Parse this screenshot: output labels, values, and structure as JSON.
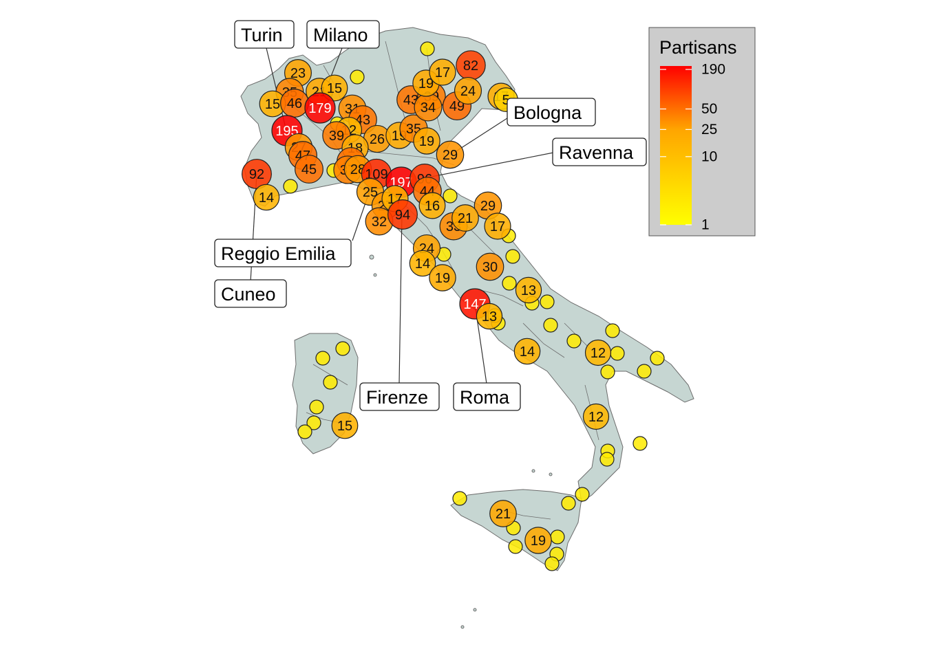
{
  "legend": {
    "title": "Partisans",
    "ticks": [
      190,
      50,
      25,
      10,
      1
    ],
    "colors": {
      "low": "#ffff00",
      "mid": "#ffa500",
      "high": "#ff0000"
    },
    "panel_color": "#cccccc"
  },
  "map_colors": {
    "land": "#c6d6d2",
    "border": "#6b6b6b",
    "bubble_stroke": "#222222"
  },
  "callouts": [
    {
      "name": "Turin",
      "label": "Turin"
    },
    {
      "name": "Milano",
      "label": "Milano"
    },
    {
      "name": "Bologna",
      "label": "Bologna"
    },
    {
      "name": "Ravenna",
      "label": "Ravenna"
    },
    {
      "name": "Reggio Emilia",
      "label": "Reggio Emilia"
    },
    {
      "name": "Cuneo",
      "label": "Cuneo"
    },
    {
      "name": "Firenze",
      "label": "Firenze"
    },
    {
      "name": "Roma",
      "label": "Roma"
    }
  ],
  "bubble_values": [
    "23",
    "35",
    "15",
    "46",
    "21",
    "15",
    "179",
    "31",
    "195",
    "43",
    "12",
    "39",
    "26",
    "19",
    "35",
    "27",
    "47",
    "18",
    "45",
    "45",
    "37",
    "28",
    "92",
    "109",
    "197",
    "96",
    "44",
    "14",
    "25",
    "27",
    "17",
    "32",
    "94",
    "16",
    "43",
    "39",
    "34",
    "49",
    "19",
    "17",
    "82",
    "24",
    "17",
    "5",
    "19",
    "29",
    "29",
    "33",
    "21",
    "17",
    "24",
    "14",
    "19",
    "30",
    "13",
    "147",
    "13",
    "14",
    "12",
    "12",
    "15",
    "21",
    "19"
  ]
}
